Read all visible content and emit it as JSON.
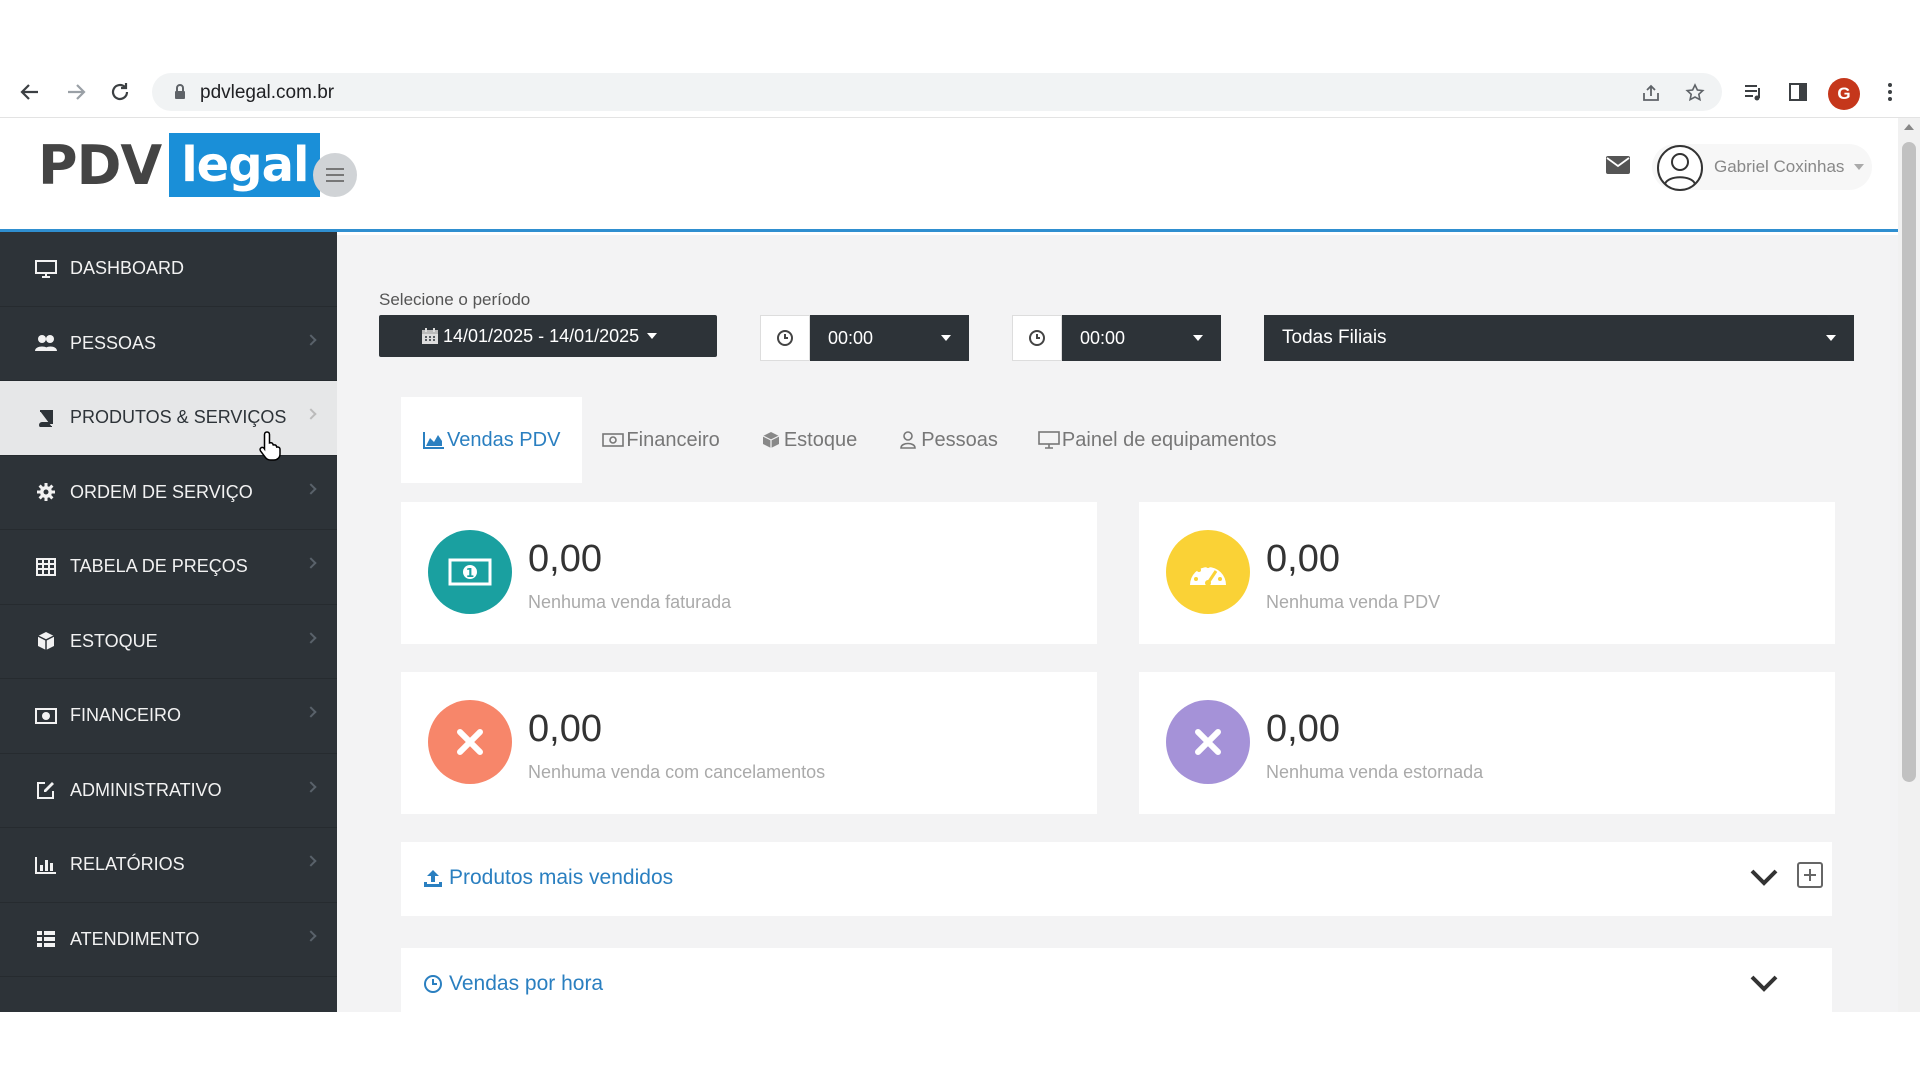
{
  "browser": {
    "url": "pdvlegal.com.br",
    "profile_initial": "G"
  },
  "header": {
    "logo_left": "PDV",
    "logo_right": "legal",
    "user_name": "Gabriel Coxinhas"
  },
  "sidebar": {
    "items": [
      {
        "label": "DASHBOARD",
        "icon": "monitor-icon"
      },
      {
        "label": "PESSOAS",
        "icon": "users-icon"
      },
      {
        "label": "PRODUTOS & SERVIÇOS",
        "icon": "book-icon"
      },
      {
        "label": "ORDEM DE SERVIÇO",
        "icon": "gear-icon"
      },
      {
        "label": "TABELA DE PREÇOS",
        "icon": "table-icon"
      },
      {
        "label": "ESTOQUE",
        "icon": "cube-icon"
      },
      {
        "label": "FINANCEIRO",
        "icon": "money-icon"
      },
      {
        "label": "ADMINISTRATIVO",
        "icon": "edit-icon"
      },
      {
        "label": "RELATÓRIOS",
        "icon": "bar-chart-icon"
      },
      {
        "label": "ATENDIMENTO",
        "icon": "grid-icon"
      }
    ],
    "active_index": 2
  },
  "filters": {
    "period_label": "Selecione o período",
    "date_range": "14/01/2025 - 14/01/2025",
    "time_start": "00:00",
    "time_end": "00:00",
    "branch": "Todas Filiais"
  },
  "tabs": [
    {
      "label": "Vendas PDV",
      "icon": "area-chart-icon",
      "active": true
    },
    {
      "label": "Financeiro",
      "icon": "money-icon",
      "active": false
    },
    {
      "label": "Estoque",
      "icon": "cube-icon",
      "active": false
    },
    {
      "label": "Pessoas",
      "icon": "user-icon",
      "active": false
    },
    {
      "label": "Painel de equipamentos",
      "icon": "monitor-icon",
      "active": false
    }
  ],
  "cards": [
    {
      "value": "0,00",
      "desc": "Nenhuma venda faturada",
      "color": "#1aa0a0",
      "icon": "money-icon"
    },
    {
      "value": "0,00",
      "desc": "Nenhuma venda PDV",
      "color": "#fad236",
      "icon": "dashboard-icon"
    },
    {
      "value": "0,00",
      "desc": "Nenhuma venda com cancelamentos",
      "color": "#f7866a",
      "icon": "close-icon"
    },
    {
      "value": "0,00",
      "desc": "Nenhuma venda estornada",
      "color": "#a592d8",
      "icon": "close-icon"
    }
  ],
  "panels": [
    {
      "title": "Produtos mais vendidos",
      "icon": "upload-icon"
    },
    {
      "title": "Vendas por hora",
      "icon": "clock-icon"
    }
  ],
  "colors": {
    "sidebar_bg": "#2d3338",
    "accent_blue": "#2a7fc0",
    "logo_blue": "#1a8fd8"
  }
}
